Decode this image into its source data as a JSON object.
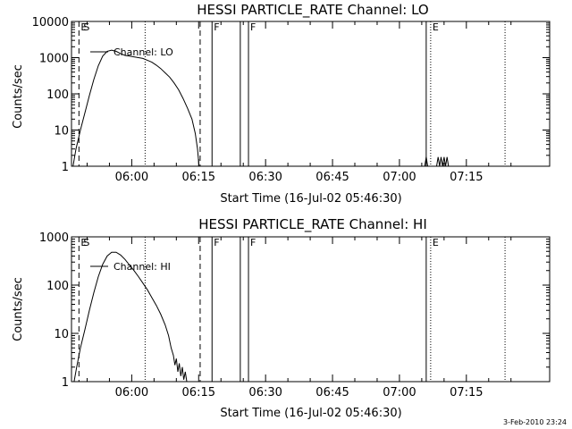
{
  "page": {
    "footer_date": "3-Feb-2010 23:24"
  },
  "chart_data": [
    {
      "type": "line",
      "title": "HESSI PARTICLE_RATE Channel: LO",
      "ylabel": "Counts/sec",
      "xlabel": "Start Time (16-Jul-02 05:46:30)",
      "y_scale": "log",
      "ylim": [
        1,
        10000
      ],
      "y_ticks": [
        1,
        10,
        100,
        1000,
        10000
      ],
      "y_tick_labels": [
        "1",
        "10",
        "100",
        "1000",
        "10000"
      ],
      "xlim": [
        "05:46:30",
        "07:33:40"
      ],
      "x_ticks": [
        "06:00",
        "06:15",
        "06:30",
        "06:45",
        "07:00",
        "07:15"
      ],
      "x_tick_labels": [
        "06:00",
        "06:15",
        "06:30",
        "06:45",
        "07:00",
        "07:15"
      ],
      "legend": {
        "position": "top-left",
        "entries": [
          "Channel: LO"
        ]
      },
      "series": [
        {
          "name": "Channel: LO",
          "segments": [
            [
              [
                "05:46:50",
                1
              ],
              [
                "05:47:30",
                3
              ],
              [
                "05:48:30",
                10
              ],
              [
                "05:49:30",
                30
              ],
              [
                "05:50:30",
                90
              ],
              [
                "05:51:30",
                250
              ],
              [
                "05:52:30",
                600
              ],
              [
                "05:53:30",
                1100
              ],
              [
                "05:54:30",
                1500
              ],
              [
                "05:55:30",
                1600
              ],
              [
                "05:56:30",
                1500
              ],
              [
                "05:57:30",
                1300
              ],
              [
                "05:58:30",
                1150
              ],
              [
                "05:59:30",
                1100
              ],
              [
                "06:00:30",
                1050
              ],
              [
                "06:01:30",
                1000
              ],
              [
                "06:02:30",
                950
              ],
              [
                "06:03:30",
                850
              ],
              [
                "06:04:30",
                750
              ],
              [
                "06:05:30",
                620
              ],
              [
                "06:06:30",
                500
              ],
              [
                "06:07:30",
                380
              ],
              [
                "06:08:30",
                290
              ],
              [
                "06:09:30",
                200
              ],
              [
                "06:10:30",
                130
              ],
              [
                "06:11:30",
                75
              ],
              [
                "06:12:30",
                40
              ],
              [
                "06:13:30",
                20
              ],
              [
                "06:14:15",
                8
              ],
              [
                "06:14:45",
                3
              ],
              [
                "06:15:05",
                1
              ]
            ],
            [
              [
                "07:05:40",
                1
              ],
              [
                "07:06:00",
                1.8
              ],
              [
                "07:06:20",
                1
              ]
            ],
            [
              [
                "07:08:20",
                1
              ],
              [
                "07:08:40",
                1.8
              ],
              [
                "07:09:00",
                1
              ],
              [
                "07:09:20",
                1.8
              ],
              [
                "07:09:40",
                1
              ],
              [
                "07:10:00",
                1.8
              ],
              [
                "07:10:20",
                1
              ],
              [
                "07:10:40",
                1.8
              ],
              [
                "07:11:00",
                1
              ]
            ]
          ]
        }
      ],
      "markers": [
        {
          "time": "05:48:10",
          "style": "dashed",
          "label": "E"
        },
        {
          "time": "05:48:10",
          "style": "none",
          "label": "S"
        },
        {
          "time": "06:03:00",
          "style": "dotted",
          "label": ""
        },
        {
          "time": "06:15:20",
          "style": "dashed",
          "label": ""
        },
        {
          "time": "06:18:00",
          "style": "solid",
          "label": "F"
        },
        {
          "time": "06:24:20",
          "style": "solid",
          "label": ""
        },
        {
          "time": "06:26:10",
          "style": "solid",
          "label": "F"
        },
        {
          "time": "07:06:00",
          "style": "solid",
          "label": ""
        },
        {
          "time": "07:07:00",
          "style": "dotted",
          "label": "E"
        },
        {
          "time": "07:23:40",
          "style": "dotted",
          "label": ""
        }
      ]
    },
    {
      "type": "line",
      "title": "HESSI PARTICLE_RATE Channel: HI",
      "ylabel": "Counts/sec",
      "xlabel": "Start Time (16-Jul-02 05:46:30)",
      "y_scale": "log",
      "ylim": [
        1,
        1000
      ],
      "y_ticks": [
        1,
        10,
        100,
        1000
      ],
      "y_tick_labels": [
        "1",
        "10",
        "100",
        "1000"
      ],
      "xlim": [
        "05:46:30",
        "07:33:40"
      ],
      "x_ticks": [
        "06:00",
        "06:15",
        "06:30",
        "06:45",
        "07:00",
        "07:15"
      ],
      "x_tick_labels": [
        "06:00",
        "06:15",
        "06:30",
        "06:45",
        "07:00",
        "07:15"
      ],
      "legend": {
        "position": "top-left",
        "entries": [
          "Channel: HI"
        ]
      },
      "series": [
        {
          "name": "Channel: HI",
          "segments": [
            [
              [
                "05:47:05",
                1
              ],
              [
                "05:47:40",
                2
              ],
              [
                "05:48:30",
                5
              ],
              [
                "05:49:30",
                12
              ],
              [
                "05:50:30",
                30
              ],
              [
                "05:51:30",
                70
              ],
              [
                "05:52:30",
                150
              ],
              [
                "05:53:30",
                270
              ],
              [
                "05:54:30",
                400
              ],
              [
                "05:55:30",
                480
              ],
              [
                "05:56:30",
                480
              ],
              [
                "05:57:30",
                420
              ],
              [
                "05:58:30",
                340
              ],
              [
                "05:59:30",
                260
              ],
              [
                "06:00:30",
                200
              ],
              [
                "06:01:30",
                150
              ],
              [
                "06:02:30",
                110
              ],
              [
                "06:03:30",
                80
              ],
              [
                "06:04:30",
                55
              ],
              [
                "06:05:30",
                38
              ],
              [
                "06:06:30",
                25
              ],
              [
                "06:07:30",
                15
              ],
              [
                "06:08:15",
                9
              ],
              [
                "06:08:50",
                5
              ],
              [
                "06:09:20",
                3.5
              ],
              [
                "06:09:40",
                2.2
              ],
              [
                "06:10:00",
                3
              ],
              [
                "06:10:20",
                1.6
              ],
              [
                "06:10:40",
                2.4
              ],
              [
                "06:11:00",
                1.3
              ],
              [
                "06:11:20",
                2
              ],
              [
                "06:11:40",
                1.1
              ],
              [
                "06:12:00",
                1.6
              ],
              [
                "06:12:20",
                1
              ]
            ]
          ]
        }
      ],
      "markers": [
        {
          "time": "05:48:10",
          "style": "dashed",
          "label": "E"
        },
        {
          "time": "05:48:10",
          "style": "none",
          "label": "S"
        },
        {
          "time": "06:03:00",
          "style": "dotted",
          "label": ""
        },
        {
          "time": "06:15:20",
          "style": "dashed",
          "label": ""
        },
        {
          "time": "06:18:00",
          "style": "solid",
          "label": "F"
        },
        {
          "time": "06:24:20",
          "style": "solid",
          "label": ""
        },
        {
          "time": "06:26:10",
          "style": "solid",
          "label": "F"
        },
        {
          "time": "07:06:00",
          "style": "solid",
          "label": ""
        },
        {
          "time": "07:07:00",
          "style": "dotted",
          "label": "E"
        },
        {
          "time": "07:23:40",
          "style": "dotted",
          "label": ""
        }
      ]
    }
  ]
}
